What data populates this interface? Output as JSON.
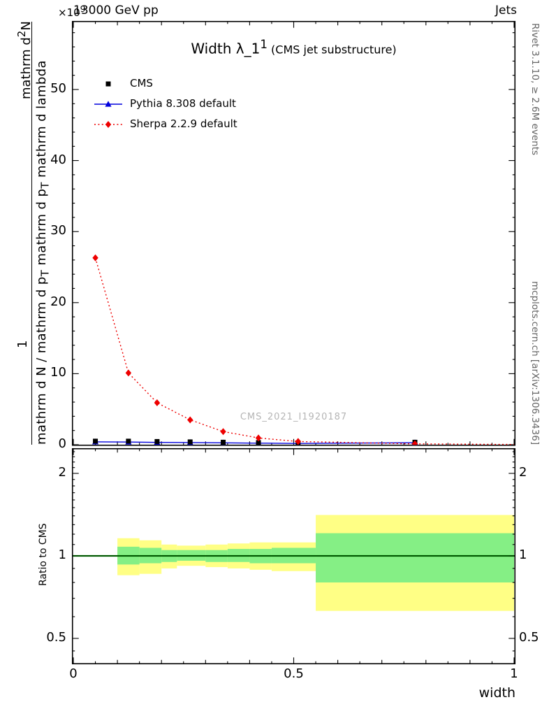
{
  "header": {
    "scale_base": "×10",
    "scale_exp": "9",
    "beam": "13000 GeV pp",
    "process": "Jets"
  },
  "title": {
    "main": "Width λ_1",
    "sup": "1",
    "suffix": " (CMS jet substructure)"
  },
  "watermark": "CMS_2021_I1920187",
  "side_notes": {
    "rivet": "Rivet 3.1.10, ≥ 2.6M events",
    "mcplots": "mcplots.cern.ch [arXiv:1306.3436]"
  },
  "ylabel": {
    "one": "1",
    "d2n_a": "mathrm d",
    "d2n_sup": "2",
    "d2n_b": "N",
    "den_a": "mathrm d N / mathrm d p",
    "den_sub_a": "T",
    "den_b": " mathrm d p",
    "den_sub_b": "T",
    "den_c": " mathrm d lambda"
  },
  "ratio_axis_label": "Ratio to CMS",
  "axes": {
    "xlabel": "width",
    "xticks": [
      {
        "v": 0,
        "label": "0"
      },
      {
        "v": 0.5,
        "label": "0.5"
      },
      {
        "v": 1,
        "label": "1"
      }
    ],
    "main_yticks": [
      {
        "v": 0,
        "label": "0"
      },
      {
        "v": 10,
        "label": "10"
      },
      {
        "v": 20,
        "label": "20"
      },
      {
        "v": 30,
        "label": "30"
      },
      {
        "v": 40,
        "label": "40"
      },
      {
        "v": 50,
        "label": "50"
      }
    ],
    "ratio_yticks": [
      {
        "v": 0.5,
        "label": "0.5"
      },
      {
        "v": 1,
        "label": "1"
      },
      {
        "v": 2,
        "label": "2"
      }
    ]
  },
  "chart_data": {
    "type": "line",
    "title": "Width λ_1^1 (CMS jet substructure)",
    "xlabel": "width",
    "ylabel": "1/(dN/dp_T) d²N/(dp_T dλ)  [×10^9]",
    "xlim": [
      0,
      1
    ],
    "ylim": [
      0,
      59
    ],
    "ratio_ylim": [
      0.4,
      2.5
    ],
    "ratio_yscale": "log",
    "grid": false,
    "legend_position": "top-left",
    "series": [
      {
        "name": "CMS",
        "slug": "cms",
        "color": "#000000",
        "marker": "square",
        "line": "none",
        "x": [
          0.05,
          0.125,
          0.19,
          0.265,
          0.34,
          0.42,
          0.51,
          0.775
        ],
        "y": [
          0.5,
          0.5,
          0.45,
          0.4,
          0.35,
          0.3,
          0.25,
          0.35
        ]
      },
      {
        "name": "Pythia 8.308 default",
        "slug": "pythia",
        "color": "#0000dd",
        "marker": "triangle",
        "line": "solid",
        "x": [
          0.05,
          0.125,
          0.19,
          0.265,
          0.34,
          0.42,
          0.51,
          0.775
        ],
        "y": [
          0.4,
          0.38,
          0.33,
          0.3,
          0.26,
          0.22,
          0.18,
          0.28
        ]
      },
      {
        "name": "Sherpa 2.2.9 default",
        "slug": "sherpa",
        "color": "#ee0000",
        "marker": "diamond",
        "line": "dotted",
        "x": [
          0.05,
          0.125,
          0.19,
          0.265,
          0.34,
          0.42,
          0.51,
          0.775
        ],
        "y": [
          26.3,
          10.1,
          5.9,
          3.5,
          1.85,
          0.95,
          0.45,
          0.12
        ],
        "line_end": {
          "x": 1.0,
          "y": 0.03
        }
      }
    ],
    "ratio": {
      "center": 1.0,
      "band_colors": {
        "yellow": "#ffff85",
        "green": "#85ef85",
        "unity_green": "#00aa00"
      },
      "bands": [
        {
          "x0": 0.1,
          "x1": 0.15,
          "yellow": [
            0.85,
            1.16
          ],
          "green": [
            0.93,
            1.08
          ]
        },
        {
          "x0": 0.15,
          "x1": 0.2,
          "yellow": [
            0.86,
            1.14
          ],
          "green": [
            0.94,
            1.07
          ]
        },
        {
          "x0": 0.2,
          "x1": 0.235,
          "yellow": [
            0.9,
            1.1
          ],
          "green": [
            0.95,
            1.05
          ]
        },
        {
          "x0": 0.235,
          "x1": 0.3,
          "yellow": [
            0.92,
            1.09
          ],
          "green": [
            0.96,
            1.05
          ]
        },
        {
          "x0": 0.3,
          "x1": 0.35,
          "yellow": [
            0.91,
            1.1
          ],
          "green": [
            0.95,
            1.05
          ]
        },
        {
          "x0": 0.35,
          "x1": 0.4,
          "yellow": [
            0.9,
            1.11
          ],
          "green": [
            0.95,
            1.06
          ]
        },
        {
          "x0": 0.4,
          "x1": 0.45,
          "yellow": [
            0.89,
            1.12
          ],
          "green": [
            0.94,
            1.06
          ]
        },
        {
          "x0": 0.45,
          "x1": 0.55,
          "yellow": [
            0.88,
            1.12
          ],
          "green": [
            0.94,
            1.07
          ]
        },
        {
          "x0": 0.55,
          "x1": 1.0,
          "yellow": [
            0.63,
            1.41
          ],
          "green": [
            0.8,
            1.21
          ]
        }
      ]
    }
  }
}
